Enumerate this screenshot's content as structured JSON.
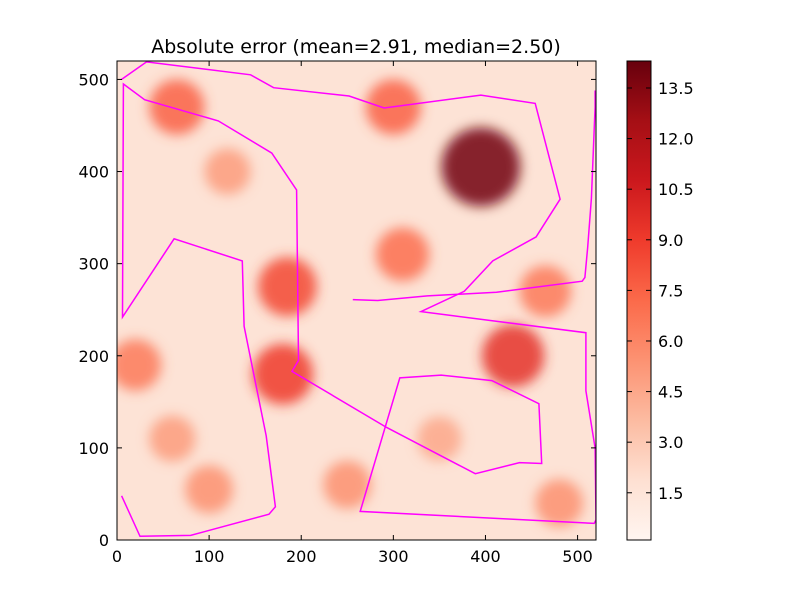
{
  "chart_data": {
    "type": "heatmap",
    "title": "Absolute error (mean=2.91, median=2.50)",
    "xlabel": "",
    "ylabel": "",
    "xlim": [
      0,
      520
    ],
    "ylim": [
      0,
      520
    ],
    "x_ticks": [
      0,
      100,
      200,
      300,
      400,
      500
    ],
    "y_ticks": [
      0,
      100,
      200,
      300,
      400,
      500
    ],
    "colormap": "Reds",
    "colorbar": {
      "range": [
        0.1,
        14.3
      ],
      "ticks": [
        "1.5",
        "3.0",
        "4.5",
        "6.0",
        "7.5",
        "9.0",
        "10.5",
        "12.0",
        "13.5"
      ],
      "tick_values": [
        1.5,
        3.0,
        4.5,
        6.0,
        7.5,
        9.0,
        10.5,
        12.0,
        13.5
      ]
    },
    "hotspots": [
      {
        "x": 395,
        "y": 405,
        "value": 14.0
      },
      {
        "x": 430,
        "y": 200,
        "value": 9.5
      },
      {
        "x": 180,
        "y": 180,
        "value": 9.0
      },
      {
        "x": 185,
        "y": 275,
        "value": 8.5
      },
      {
        "x": 300,
        "y": 470,
        "value": 7.5
      },
      {
        "x": 65,
        "y": 470,
        "value": 7.5
      },
      {
        "x": 310,
        "y": 310,
        "value": 7.0
      },
      {
        "x": 20,
        "y": 190,
        "value": 6.5
      },
      {
        "x": 100,
        "y": 55,
        "value": 5.5
      },
      {
        "x": 250,
        "y": 60,
        "value": 5.5
      },
      {
        "x": 465,
        "y": 270,
        "value": 6.5
      },
      {
        "x": 120,
        "y": 400,
        "value": 5.0
      },
      {
        "x": 350,
        "y": 110,
        "value": 4.5
      },
      {
        "x": 60,
        "y": 110,
        "value": 5.0
      },
      {
        "x": 480,
        "y": 40,
        "value": 5.5
      }
    ],
    "outline_color": "#ff00ff",
    "outlines": [
      [
        [
          5,
          48
        ],
        [
          25,
          4
        ],
        [
          80,
          5
        ],
        [
          165,
          28
        ],
        [
          172,
          36
        ],
        [
          162,
          113
        ],
        [
          138,
          232
        ],
        [
          136,
          303
        ],
        [
          62,
          327
        ],
        [
          6,
          242
        ],
        [
          7,
          495
        ],
        [
          30,
          478
        ],
        [
          110,
          455
        ],
        [
          168,
          420
        ],
        [
          195,
          380
        ],
        [
          197,
          195
        ],
        [
          190,
          183
        ],
        [
          293,
          122
        ],
        [
          389,
          72
        ],
        [
          437,
          84
        ],
        [
          461,
          83
        ],
        [
          458,
          148
        ],
        [
          407,
          173
        ],
        [
          352,
          179
        ],
        [
          307,
          176
        ],
        [
          264,
          31
        ],
        [
          518,
          18
        ],
        [
          520,
          22
        ],
        [
          519,
          100
        ],
        [
          509,
          162
        ],
        [
          509,
          225
        ],
        [
          330,
          248
        ],
        [
          377,
          270
        ],
        [
          408,
          303
        ],
        [
          455,
          329
        ],
        [
          481,
          370
        ],
        [
          454,
          474
        ],
        [
          395,
          483
        ],
        [
          290,
          469
        ],
        [
          252,
          482
        ],
        [
          170,
          491
        ],
        [
          145,
          505
        ],
        [
          32,
          519
        ],
        [
          5,
          500
        ]
      ],
      [
        [
          256,
          261
        ],
        [
          283,
          260
        ],
        [
          337,
          265
        ],
        [
          412,
          269
        ],
        [
          505,
          281
        ],
        [
          508,
          285
        ],
        [
          511,
          318
        ],
        [
          515,
          371
        ],
        [
          519,
          470
        ],
        [
          519,
          488
        ]
      ]
    ]
  }
}
